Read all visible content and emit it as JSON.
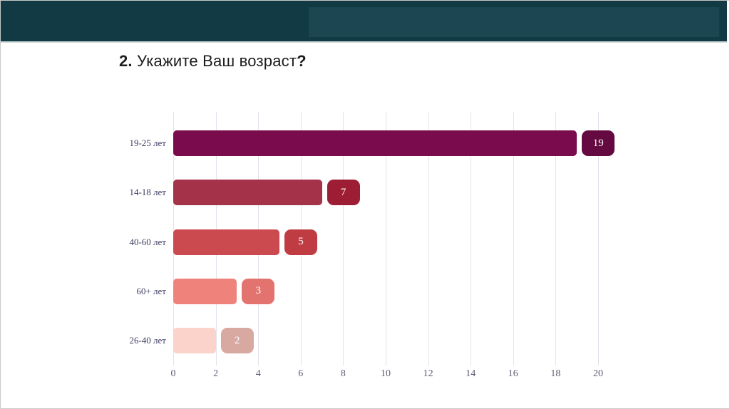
{
  "slide": {
    "title_prefix": "2.",
    "title_text": " Укажите Ваш возраст",
    "title_suffix": "?"
  },
  "header": {
    "bg_color": "#123a45",
    "inner_bg_color": "#1b4652"
  },
  "chart_data": {
    "type": "bar",
    "orientation": "horizontal",
    "title": "2. Укажите Ваш возраст?",
    "categories": [
      "19-25 лет",
      "14-18 лет",
      "40-60 лет",
      "60+ лет",
      "26-40 лет"
    ],
    "values": [
      19,
      7,
      5,
      3,
      2
    ],
    "bar_colors": [
      "#7a0c4d",
      "#a4334a",
      "#cb4a50",
      "#ef837c",
      "#fbd3cb"
    ],
    "badge_colors": [
      "#640a40",
      "#9d1d35",
      "#c03c43",
      "#e3736e",
      "#d8a9a1"
    ],
    "value_label_color": "#ffffff",
    "x_ticks": [
      0,
      2,
      4,
      6,
      8,
      10,
      12,
      14,
      16,
      18,
      20
    ],
    "xlim": [
      0,
      21
    ],
    "grid": true,
    "legend": false,
    "xlabel": "",
    "ylabel": ""
  }
}
